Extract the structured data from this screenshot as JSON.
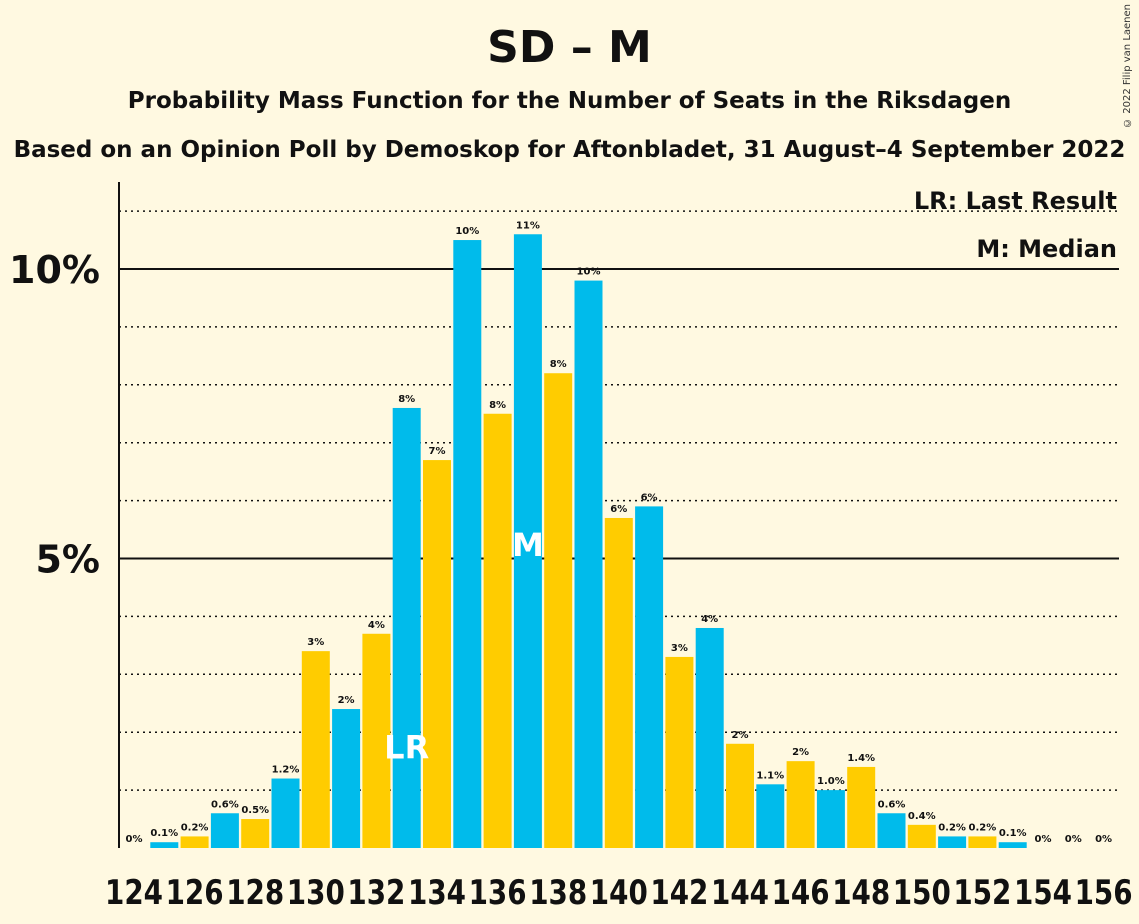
{
  "title": "SD – M",
  "subtitle": "Probability Mass Function for the Number of Seats in the Riksdagen",
  "subtitle2": "Based on an Opinion Poll by Demoskop for Aftonbladet, 31 August–4 September 2022",
  "copyright": "© 2022 Filip van Laenen",
  "legend": {
    "lr": "LR: Last Result",
    "median": "M: Median"
  },
  "colors": {
    "background": "#FFF9E1",
    "blue": "#00BBEB",
    "yellow": "#FFCC00"
  },
  "chart_data": {
    "type": "bar",
    "x": [
      124,
      125,
      126,
      127,
      128,
      129,
      130,
      131,
      132,
      133,
      134,
      135,
      136,
      137,
      138,
      139,
      140,
      141,
      142,
      143,
      144,
      145,
      146,
      147,
      148,
      149,
      150,
      151,
      152,
      153,
      154,
      155,
      156
    ],
    "values": [
      0.0,
      0.1,
      0.2,
      0.6,
      0.5,
      1.2,
      3.4,
      2.4,
      3.7,
      7.6,
      6.7,
      10.5,
      7.5,
      10.6,
      8.2,
      9.8,
      5.7,
      5.9,
      3.3,
      3.8,
      1.8,
      1.1,
      1.5,
      1.0,
      1.4,
      0.6,
      0.4,
      0.2,
      0.2,
      0.1,
      0.0,
      0.0,
      0.0
    ],
    "labels": [
      "0%",
      "0.1%",
      "0.2%",
      "0.6%",
      "0.5%",
      "1.2%",
      "3%",
      "2%",
      "4%",
      "8%",
      "7%",
      "10%",
      "8%",
      "11%",
      "8%",
      "10%",
      "6%",
      "6%",
      "3%",
      "4%",
      "2%",
      "1.1%",
      "2%",
      "1.0%",
      "1.4%",
      "0.6%",
      "0.4%",
      "0.2%",
      "0.2%",
      "0.1%",
      "0%",
      "0%",
      "0%"
    ],
    "x_tick_labels": [
      "124",
      "126",
      "128",
      "130",
      "132",
      "134",
      "136",
      "138",
      "140",
      "142",
      "144",
      "146",
      "148",
      "150",
      "152",
      "154",
      "156"
    ],
    "y_ticks": [
      {
        "value": 5,
        "label": "5%"
      },
      {
        "value": 10,
        "label": "10%"
      }
    ],
    "ylim": [
      0,
      11.5
    ],
    "last_result": 133,
    "last_result_label": "LR",
    "median": 137,
    "median_label": "M",
    "grid": "dotted every 1%, solid at 5% and 10%"
  }
}
